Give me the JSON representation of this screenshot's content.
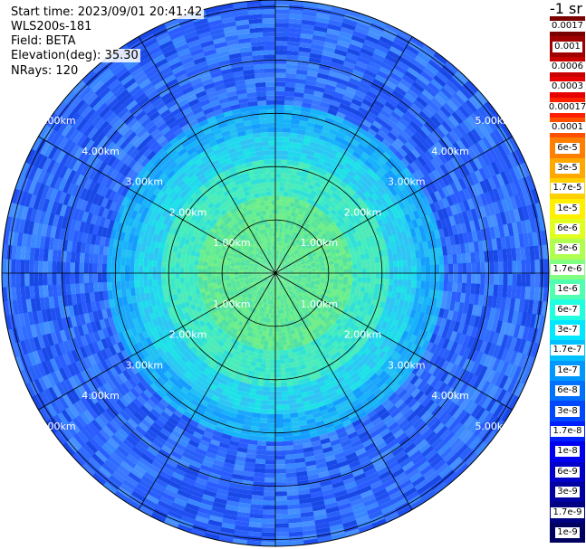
{
  "info": {
    "start_time": "Start time: 2023/09/01 20:41:42",
    "instrument": "WLS200s-181",
    "field": "Field: BETA",
    "elevation": "Elevation(deg): 35.30",
    "nrays": "NRays: 120"
  },
  "colorbar": {
    "unit_title": "-1 sr",
    "labels": [
      "0.0017",
      "0.001",
      "0.0006",
      "0.0003",
      "0.00017",
      "0.0001",
      "6e-5",
      "3e-5",
      "1.7e-5",
      "1e-5",
      "6e-6",
      "3e-6",
      "1.7e-6",
      "1e-6",
      "6e-7",
      "3e-7",
      "1.7e-7",
      "1e-7",
      "6e-8",
      "3e-8",
      "1.7e-8",
      "1e-8",
      "6e-9",
      "3e-9",
      "1.7e-9",
      "1e-9"
    ],
    "colors": [
      "#7a0000",
      "#a00000",
      "#c80000",
      "#e60000",
      "#ff2000",
      "#ff5000",
      "#ff8000",
      "#ffa800",
      "#ffd000",
      "#fff000",
      "#e0ff20",
      "#b0ff50",
      "#80ff80",
      "#50ffb0",
      "#20ffe0",
      "#00e8ff",
      "#00c0ff",
      "#0098ff",
      "#0070ff",
      "#0048ff",
      "#0020ff",
      "#0000f0",
      "#0000c8",
      "#0000a0",
      "#000080",
      "#000060"
    ]
  },
  "range_rings": {
    "labels": [
      "1.00km",
      "2.00km",
      "3.00km",
      "4.00km",
      "5.00km"
    ]
  }
}
